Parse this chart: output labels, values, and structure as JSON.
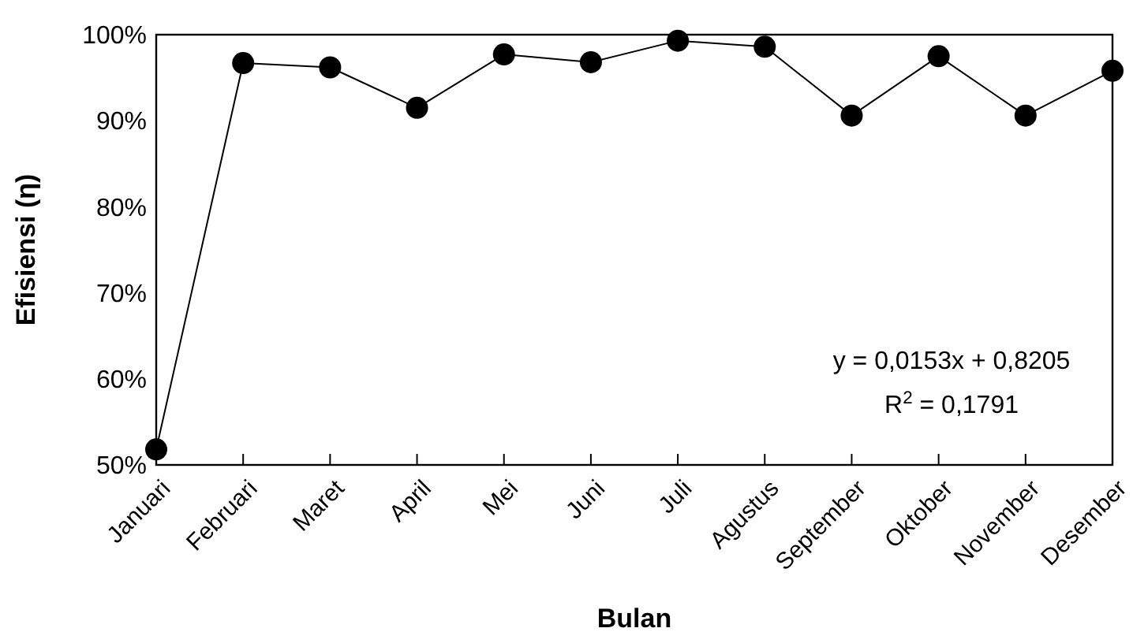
{
  "chart_data": {
    "type": "line",
    "xlabel": "Bulan",
    "ylabel": "Efisiensi (η)",
    "categories": [
      "Januari",
      "Februari",
      "Maret",
      "April",
      "Mei",
      "Juni",
      "Juli",
      "Agustus",
      "September",
      "Oktober",
      "November",
      "Desember"
    ],
    "series": [
      {
        "color": "#000000",
        "values": [
          51.8,
          96.7,
          96.2,
          91.5,
          97.7,
          96.8,
          99.3,
          98.6,
          90.6,
          97.5,
          90.6,
          95.8
        ]
      }
    ],
    "ylim": [
      50,
      100
    ],
    "yticks": [
      {
        "value": 50,
        "label": "50%"
      },
      {
        "value": 60,
        "label": "60%"
      },
      {
        "value": 70,
        "label": "70%"
      },
      {
        "value": 80,
        "label": "80%"
      },
      {
        "value": 90,
        "label": "90%"
      },
      {
        "value": 100,
        "label": "100%"
      }
    ],
    "marker": "circle",
    "line_style": "solid",
    "grid": false,
    "annotations": [
      "y = 0,0153x + 0,8205",
      "R$^{2}$ = 0,1791"
    ]
  }
}
